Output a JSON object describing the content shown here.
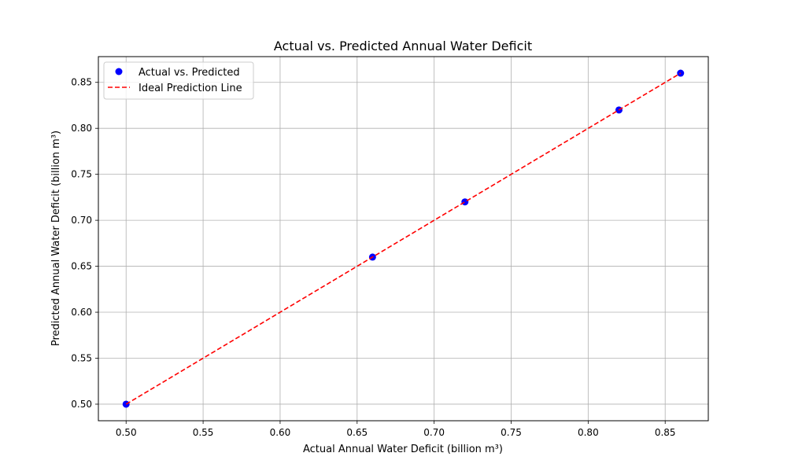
{
  "chart_data": {
    "type": "scatter",
    "title": "Actual vs. Predicted Annual Water Deficit",
    "xlabel": "Actual Annual Water Deficit (billion m³)",
    "ylabel": "Predicted Annual Water Deficit (billion m³)",
    "xlim": [
      0.482,
      0.878
    ],
    "ylim": [
      0.482,
      0.878
    ],
    "xticks": [
      "0.50",
      "0.55",
      "0.60",
      "0.65",
      "0.70",
      "0.75",
      "0.80",
      "0.85"
    ],
    "yticks": [
      "0.50",
      "0.55",
      "0.60",
      "0.65",
      "0.70",
      "0.75",
      "0.80",
      "0.85"
    ],
    "grid": true,
    "legend_position": "top-left",
    "series": [
      {
        "name": "Actual vs. Predicted",
        "kind": "scatter",
        "color": "#0000ff",
        "x": [
          0.5,
          0.66,
          0.72,
          0.82,
          0.86
        ],
        "y": [
          0.5,
          0.66,
          0.72,
          0.82,
          0.86
        ]
      },
      {
        "name": "Ideal Prediction Line",
        "kind": "line",
        "style": "dashed",
        "color": "#ff0000",
        "x": [
          0.5,
          0.86
        ],
        "y": [
          0.5,
          0.86
        ]
      }
    ]
  }
}
